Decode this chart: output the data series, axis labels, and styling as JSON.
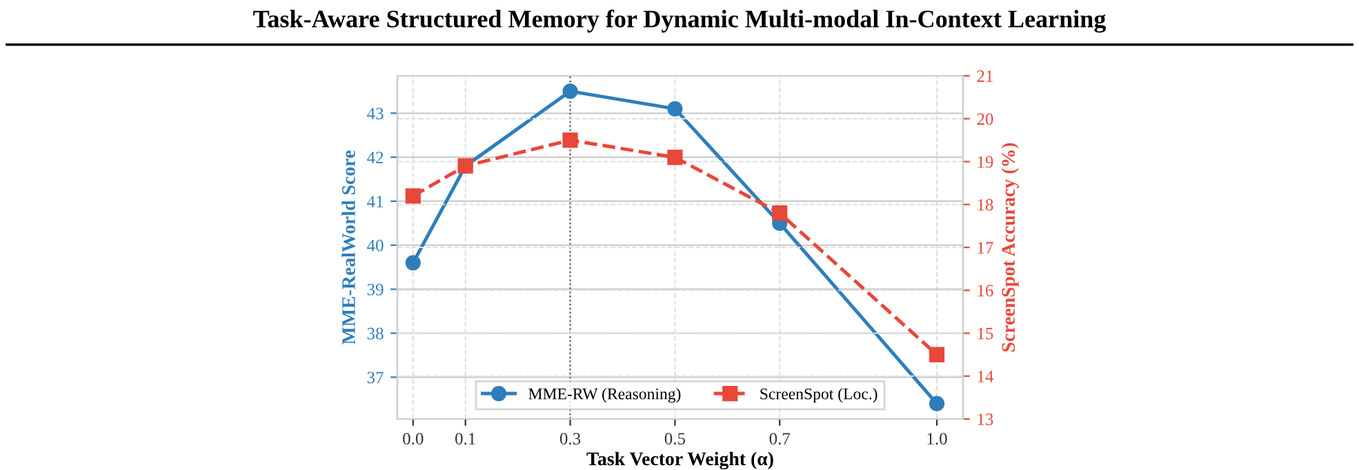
{
  "chart_data": {
    "type": "line",
    "title": "Task-Aware Structured Memory for Dynamic Multi-modal In-Context Learning",
    "xlabel": "Task Vector Weight (α)",
    "ylabel": "MME-RealWorld Score",
    "y2label": "ScreenSpot Accuracy (%)",
    "x": [
      0.0,
      0.1,
      0.3,
      0.5,
      0.7,
      1.0
    ],
    "series": [
      {
        "name": "MME-RW (Reasoning)",
        "color": "#2e7ebc",
        "values": [
          39.6,
          41.8,
          43.5,
          43.1,
          40.5,
          36.4
        ],
        "marker": "circle",
        "line_style": "solid"
      },
      {
        "name": "ScreenSpot (Loc.)",
        "color": "#e8473a",
        "values": [
          18.2,
          18.9,
          19.5,
          19.1,
          17.8,
          14.5
        ],
        "axis": "y2",
        "marker": "square",
        "line_style": "dashed"
      }
    ],
    "xlim": [
      -0.03,
      1.05
    ],
    "xticks": [
      {
        "value": 0,
        "label": "0.0"
      },
      0.1,
      0.3,
      0.5,
      0.7,
      {
        "value": 1,
        "label": "1.0"
      }
    ],
    "ylim": [
      36.05,
      43.85
    ],
    "yticks": [
      37,
      38,
      39,
      40,
      41,
      42,
      43
    ],
    "y2lim": [
      13,
      21
    ],
    "y2ticks": [
      13,
      14,
      15,
      16,
      17,
      18,
      19,
      20,
      21
    ],
    "ref_lines": [
      {
        "axis": "x",
        "value": 0.3,
        "color": "#555555",
        "line_style": "dotted"
      }
    ],
    "grid": true,
    "legend": "bottom"
  }
}
